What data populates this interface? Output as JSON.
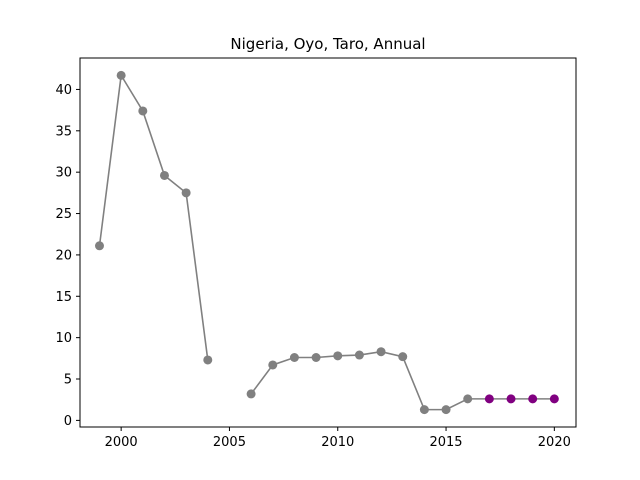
{
  "chart_data": {
    "type": "line",
    "title": "Nigeria, Oyo, Taro, Annual",
    "xlabel": "",
    "ylabel": "",
    "xlim": [
      1998.1,
      2021.0
    ],
    "ylim": [
      -0.8,
      43.8
    ],
    "x_ticks": [
      2000,
      2005,
      2010,
      2015,
      2020
    ],
    "y_ticks": [
      0,
      5,
      10,
      15,
      20,
      25,
      30,
      35,
      40
    ],
    "grid": false,
    "line_color": "#808080",
    "series": [
      {
        "color": "#808080",
        "points": [
          {
            "x": 1999,
            "y": 21.1
          },
          {
            "x": 2000,
            "y": 41.7
          },
          {
            "x": 2001,
            "y": 37.4
          },
          {
            "x": 2002,
            "y": 29.6
          },
          {
            "x": 2003,
            "y": 27.5
          },
          {
            "x": 2004,
            "y": 7.3
          },
          {
            "x": 2005,
            "y": null
          },
          {
            "x": 2006,
            "y": 3.2
          },
          {
            "x": 2007,
            "y": 6.7
          },
          {
            "x": 2008,
            "y": 7.6
          },
          {
            "x": 2009,
            "y": 7.6
          },
          {
            "x": 2010,
            "y": 7.8
          },
          {
            "x": 2011,
            "y": 7.9
          },
          {
            "x": 2012,
            "y": 8.3
          },
          {
            "x": 2013,
            "y": 7.7
          },
          {
            "x": 2014,
            "y": 1.3
          },
          {
            "x": 2015,
            "y": 1.3
          },
          {
            "x": 2016,
            "y": 2.6
          }
        ]
      },
      {
        "color": "#800080",
        "points": [
          {
            "x": 2017,
            "y": 2.6
          },
          {
            "x": 2018,
            "y": 2.6
          },
          {
            "x": 2019,
            "y": 2.6
          },
          {
            "x": 2020,
            "y": 2.6
          }
        ]
      }
    ]
  }
}
